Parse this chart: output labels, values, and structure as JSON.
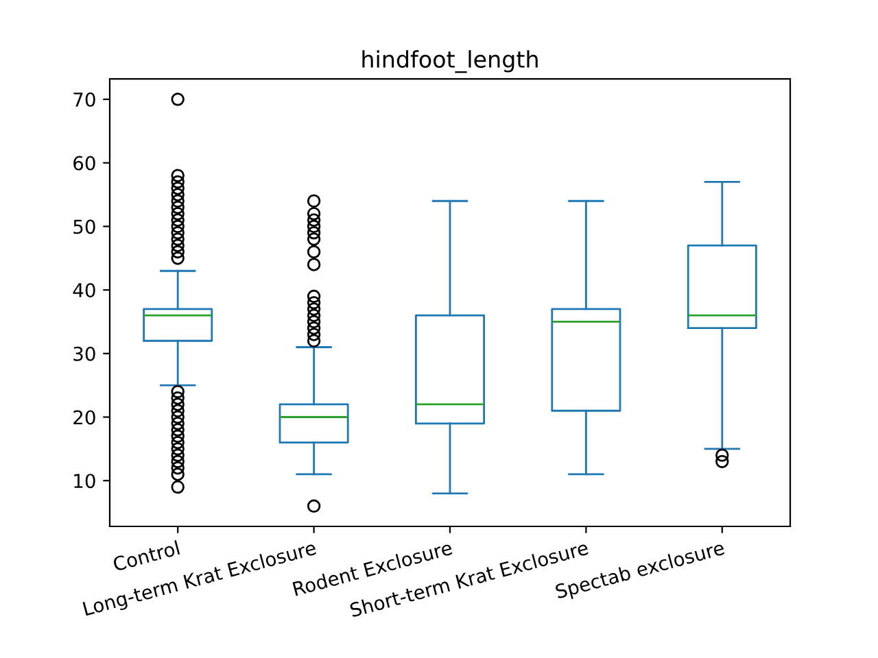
{
  "chart_data": {
    "type": "box",
    "title": "hindfoot_length",
    "categories": [
      "Control",
      "Long-term Krat Exclosure",
      "Rodent Exclosure",
      "Short-term Krat Exclosure",
      "Spectab exclosure"
    ],
    "color": "#1f77b4",
    "boxes": [
      {
        "low": 25,
        "q1": 32,
        "median": 36,
        "q3": 37,
        "high": 43,
        "outliers": [
          9,
          11,
          12,
          13,
          14,
          15,
          16,
          17,
          18,
          19,
          20,
          21,
          22,
          23,
          24,
          45,
          46,
          47,
          48,
          49,
          50,
          51,
          52,
          53,
          54,
          55,
          56,
          57,
          58,
          70
        ]
      },
      {
        "low": 11,
        "q1": 16,
        "median": 20,
        "q3": 22,
        "high": 31,
        "outliers": [
          6,
          32,
          33,
          34,
          35,
          36,
          37,
          38,
          39,
          44,
          46,
          48,
          49,
          50,
          51,
          52,
          54
        ]
      },
      {
        "low": 8,
        "q1": 19,
        "median": 22,
        "q3": 36,
        "high": 54
      },
      {
        "low": 11,
        "q1": 21,
        "median": 35,
        "q3": 37,
        "high": 54
      },
      {
        "low": 15,
        "q1": 34,
        "median": 36,
        "q3": 47,
        "high": 57,
        "outliers": [
          13,
          14
        ]
      }
    ],
    "ylim": [
      2.8,
      73.2
    ],
    "yticks": [
      10,
      20,
      30,
      40,
      50,
      60,
      70
    ],
    "grid": false
  }
}
